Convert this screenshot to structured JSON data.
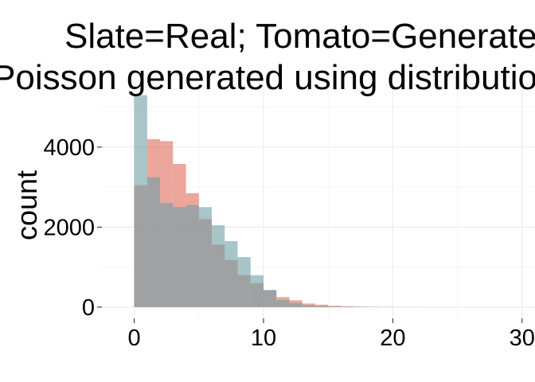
{
  "chart_data": {
    "type": "bar",
    "subtype": "overlaid histogram",
    "title_lines": [
      "Slate=Real; Tomato=Generated",
      "Poisson generated using distribution of X"
    ],
    "xlabel": "",
    "ylabel": "count",
    "xlim": [
      -2.5,
      31
    ],
    "ylim": [
      -280,
      5450
    ],
    "x_ticks": [
      0,
      10,
      20,
      30
    ],
    "y_ticks": [
      0,
      2000,
      4000
    ],
    "bin_width": 1,
    "grid": true,
    "legend": "none",
    "series": [
      {
        "color": "#E06A5A",
        "bins": [
          {
            "x0": 0,
            "x1": 1,
            "count": 3050
          },
          {
            "x0": 1,
            "x1": 2,
            "count": 4200
          },
          {
            "x0": 2,
            "x1": 3,
            "count": 4150
          },
          {
            "x0": 3,
            "x1": 4,
            "count": 3580
          },
          {
            "x0": 4,
            "x1": 5,
            "count": 2850
          },
          {
            "x0": 5,
            "x1": 6,
            "count": 2200
          },
          {
            "x0": 6,
            "x1": 7,
            "count": 1560
          },
          {
            "x0": 7,
            "x1": 8,
            "count": 1180
          },
          {
            "x0": 8,
            "x1": 9,
            "count": 800
          },
          {
            "x0": 9,
            "x1": 10,
            "count": 600
          },
          {
            "x0": 10,
            "x1": 11,
            "count": 420
          },
          {
            "x0": 11,
            "x1": 12,
            "count": 250
          },
          {
            "x0": 12,
            "x1": 13,
            "count": 170
          },
          {
            "x0": 13,
            "x1": 14,
            "count": 90
          },
          {
            "x0": 14,
            "x1": 15,
            "count": 60
          },
          {
            "x0": 15,
            "x1": 16,
            "count": 35
          },
          {
            "x0": 16,
            "x1": 17,
            "count": 20
          },
          {
            "x0": 17,
            "x1": 18,
            "count": 12
          },
          {
            "x0": 18,
            "x1": 19,
            "count": 8
          },
          {
            "x0": 19,
            "x1": 20,
            "count": 5
          },
          {
            "x0": 20,
            "x1": 21,
            "count": 3
          },
          {
            "x0": 21,
            "x1": 22,
            "count": 2
          }
        ]
      },
      {
        "color": "#6E9EA6",
        "bins": [
          {
            "x0": 0,
            "x1": 1,
            "count": 5300
          },
          {
            "x0": 1,
            "x1": 2,
            "count": 3250
          },
          {
            "x0": 2,
            "x1": 3,
            "count": 2600
          },
          {
            "x0": 3,
            "x1": 4,
            "count": 2500
          },
          {
            "x0": 4,
            "x1": 5,
            "count": 2550
          },
          {
            "x0": 5,
            "x1": 6,
            "count": 2500
          },
          {
            "x0": 6,
            "x1": 7,
            "count": 2050
          },
          {
            "x0": 7,
            "x1": 8,
            "count": 1650
          },
          {
            "x0": 8,
            "x1": 9,
            "count": 1250
          },
          {
            "x0": 9,
            "x1": 10,
            "count": 800
          },
          {
            "x0": 10,
            "x1": 11,
            "count": 430
          },
          {
            "x0": 11,
            "x1": 12,
            "count": 180
          },
          {
            "x0": 12,
            "x1": 13,
            "count": 100
          },
          {
            "x0": 13,
            "x1": 14,
            "count": 50
          },
          {
            "x0": 14,
            "x1": 15,
            "count": 25
          },
          {
            "x0": 15,
            "x1": 16,
            "count": 15
          },
          {
            "x0": 16,
            "x1": 17,
            "count": 8
          },
          {
            "x0": 17,
            "x1": 18,
            "count": 5
          },
          {
            "x0": 18,
            "x1": 19,
            "count": 3
          },
          {
            "x0": 19,
            "x1": 20,
            "count": 2
          }
        ]
      }
    ]
  }
}
